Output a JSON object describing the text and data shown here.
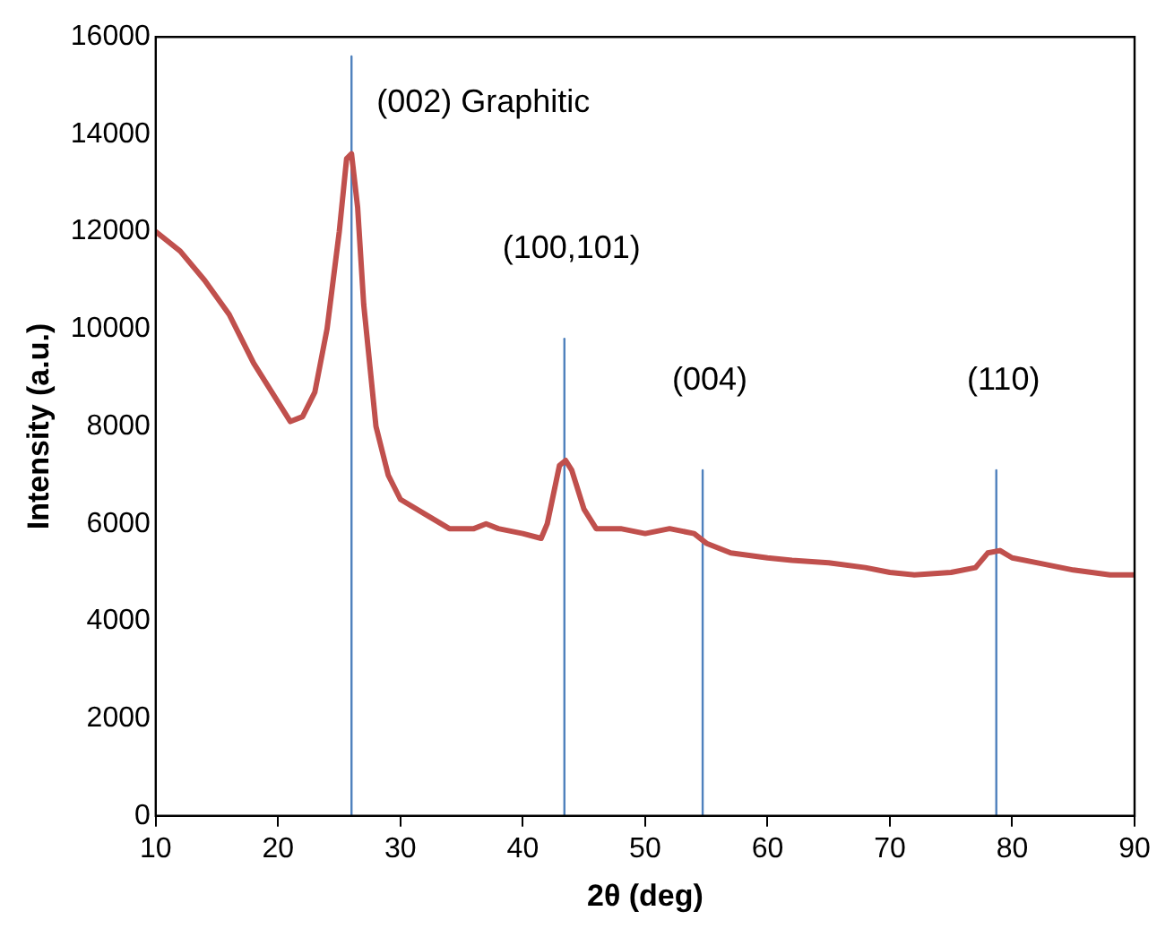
{
  "chart_data": {
    "type": "line",
    "xlabel": "2θ (deg)",
    "ylabel": "Intensity (a.u.)",
    "xlim": [
      10,
      90
    ],
    "xticks": [
      10,
      20,
      30,
      40,
      50,
      60,
      70,
      80,
      90
    ],
    "ylim": [
      0,
      16000
    ],
    "yticks": [
      0,
      2000,
      4000,
      6000,
      8000,
      10000,
      12000,
      14000,
      16000
    ],
    "grid": false,
    "legend": false,
    "marker": "none",
    "line_style": "solid",
    "series": [
      {
        "color": "#c0504d",
        "x": [
          10,
          12,
          14,
          16,
          18,
          20,
          21,
          22,
          23,
          24,
          25,
          25.6,
          26,
          26.5,
          27,
          28,
          29,
          30,
          32,
          34,
          36,
          37,
          38,
          40,
          41.5,
          42,
          43,
          43.5,
          44,
          45,
          46,
          48,
          50,
          52,
          54,
          55,
          57,
          60,
          62,
          65,
          68,
          70,
          72,
          75,
          77,
          78,
          79,
          80,
          82,
          85,
          88,
          90
        ],
        "values": [
          12000,
          11600,
          11000,
          10300,
          9300,
          8500,
          8100,
          8200,
          8700,
          10000,
          12000,
          13500,
          13600,
          12500,
          10500,
          8000,
          7000,
          6500,
          6200,
          5900,
          5900,
          6000,
          5900,
          5800,
          5700,
          6000,
          7200,
          7300,
          7100,
          6300,
          5900,
          5900,
          5800,
          5900,
          5800,
          5600,
          5400,
          5300,
          5250,
          5200,
          5100,
          5000,
          4950,
          5000,
          5100,
          5400,
          5450,
          5300,
          5200,
          5050,
          4950,
          4950
        ]
      },
      {
        "color": "#4f81bd",
        "x": [
          26,
          26
        ],
        "values": [
          0,
          15600
        ]
      },
      {
        "color": "#4f81bd",
        "x": [
          43.4,
          43.4
        ],
        "values": [
          0,
          9800
        ]
      },
      {
        "color": "#4f81bd",
        "x": [
          54.7,
          54.7
        ],
        "values": [
          0,
          7100
        ]
      },
      {
        "color": "#4f81bd",
        "x": [
          78.7,
          78.7
        ],
        "values": [
          0,
          7100
        ]
      }
    ],
    "annotations": [
      {
        "text": "(002) Graphitic",
        "x": 26,
        "y": 15600
      },
      {
        "text": "(100,101)",
        "x": 43.4,
        "y": 9800
      },
      {
        "text": "(004)",
        "x": 54.7,
        "y": 7100
      },
      {
        "text": "(110)",
        "x": 78.7,
        "y": 7100
      }
    ]
  }
}
